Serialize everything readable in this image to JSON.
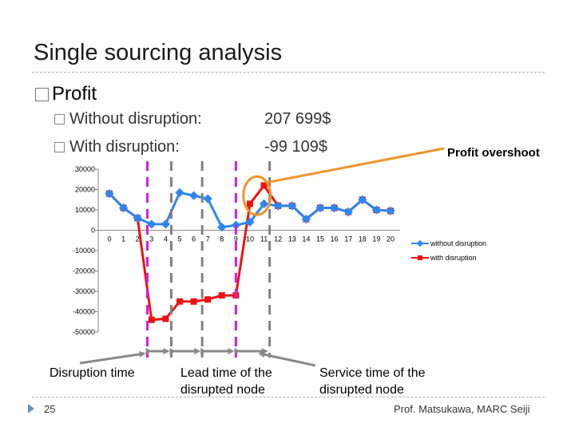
{
  "slide": {
    "title": "Single sourcing analysis",
    "bullet": "Profit",
    "rows": [
      {
        "label": "Without disruption:",
        "value": "207 699$"
      },
      {
        "label": "With disruption:",
        "value": "-99 109$"
      }
    ],
    "overshoot_label": "Profit overshoot",
    "captions": {
      "disruption_time": "Disruption time",
      "lead_time": "Lead time of the disrupted node",
      "service_time": "Service time of the disrupted node"
    },
    "page_number": "25",
    "author": "Prof. Matsukawa, MARC Seiji"
  },
  "chart_data": {
    "type": "line",
    "x": [
      0,
      1,
      2,
      3,
      4,
      5,
      6,
      7,
      8,
      9,
      10,
      11,
      12,
      13,
      14,
      15,
      16,
      17,
      18,
      19,
      20
    ],
    "ylim": [
      -50000,
      30000
    ],
    "yticks": [
      30000,
      20000,
      10000,
      0,
      -10000,
      -20000,
      -30000,
      -40000,
      -50000
    ],
    "grid": false,
    "legend": "right",
    "series": [
      {
        "name": "without disruption",
        "color": "#2e86f0",
        "values": [
          18000,
          11000,
          6000,
          3000,
          3000,
          18500,
          17000,
          15500,
          1500,
          2500,
          4000,
          13000,
          12000,
          12000,
          5500,
          11000,
          11000,
          9000,
          15000,
          10000,
          9500
        ]
      },
      {
        "name": "with disruption",
        "color": "#ee1111",
        "values": [
          18000,
          11000,
          6000,
          -44000,
          -43500,
          -35000,
          -35000,
          -34000,
          -32000,
          -32000,
          13000,
          22000,
          12000,
          12000,
          5500,
          11000,
          11000,
          9000,
          15000,
          10000,
          9500
        ]
      }
    ]
  }
}
